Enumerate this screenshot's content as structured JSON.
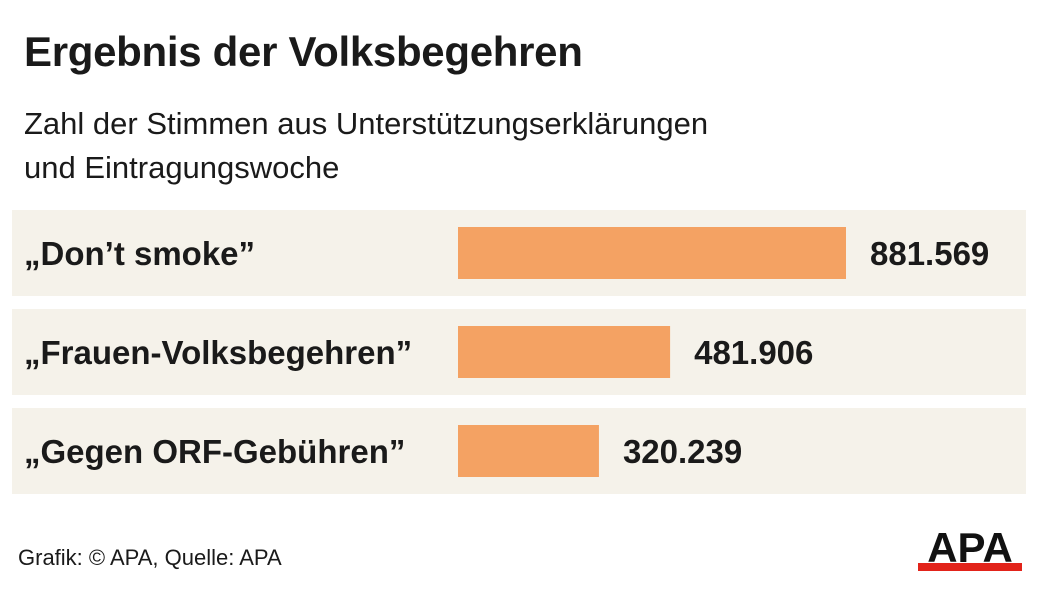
{
  "title": "Ergebnis der Volksbegehren",
  "subtitle_line1": "Zahl der Stimmen aus Unterstützungserklärungen",
  "subtitle_line2": "und Eintragungswoche",
  "source": "Grafik: © APA, Quelle: APA",
  "logo_text": "APA",
  "colors": {
    "bar": "#f4a263",
    "row_background": "#f5f2ea",
    "text": "#1a1a1a",
    "logo_stripe": "#e2231a"
  },
  "chart_data": {
    "type": "bar",
    "orientation": "horizontal",
    "title": "Ergebnis der Volksbegehren",
    "subtitle": "Zahl der Stimmen aus Unterstützungserklärungen und Eintragungswoche",
    "categories": [
      "„Don’t smoke”",
      "„Frauen-Volksbegehren”",
      "„Gegen ORF-Gebühren”"
    ],
    "values": [
      881569,
      481906,
      320239
    ],
    "value_labels": [
      "881.569",
      "481.906",
      "320.239"
    ],
    "xlim": [
      0,
      881569
    ],
    "grid": false,
    "legend": "none"
  }
}
